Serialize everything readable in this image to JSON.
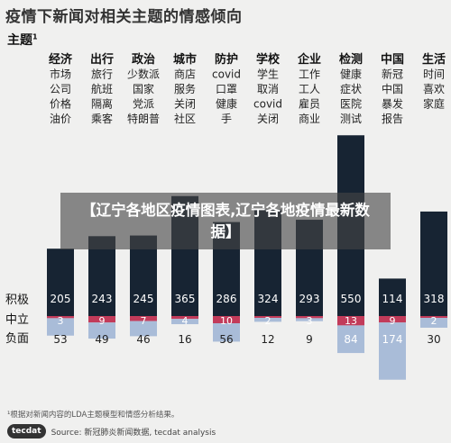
{
  "title": "疫情下新闻对相关主题的情感倾向",
  "subhead": "主题",
  "subhead_sup": "1",
  "overlay_text": "【辽宁各地区疫情图表,辽宁各地疫情最新数据】",
  "footnote": "¹根据对新闻内容的LDA主题模型和情感分析结果。",
  "source": {
    "logo_text": "tecdat",
    "text": "Source: 新冠肺炎新闻数据,  tecdat analysis"
  },
  "colors": {
    "positive": "#172433",
    "neutral": "#c23b5a",
    "negative": "#a9bcd8",
    "background": "#f0f0ef"
  },
  "chart_data": {
    "type": "bar",
    "categories": [
      {
        "name": "经济",
        "terms": [
          "市场",
          "公司",
          "价格",
          "油价"
        ]
      },
      {
        "name": "出行",
        "terms": [
          "旅行",
          "航班",
          "隔离",
          "乘客"
        ]
      },
      {
        "name": "政治",
        "terms": [
          "少数派",
          "国家",
          "党派",
          "特朗普"
        ]
      },
      {
        "name": "城市",
        "terms": [
          "商店",
          "服务",
          "关闭",
          "社区"
        ]
      },
      {
        "name": "防护",
        "terms": [
          "covid",
          "口罩",
          "健康",
          "手"
        ]
      },
      {
        "name": "学校",
        "terms": [
          "学生",
          "取消",
          "covid",
          "关闭"
        ]
      },
      {
        "name": "企业",
        "terms": [
          "工作",
          "工人",
          "雇员",
          "商业"
        ]
      },
      {
        "name": "检测",
        "terms": [
          "健康",
          "症状",
          "医院",
          "测试"
        ]
      },
      {
        "name": "中国",
        "terms": [
          "新冠",
          "中国",
          "暴发",
          "报告"
        ]
      },
      {
        "name": "生活",
        "terms": [
          "时间",
          "喜欢",
          "家庭"
        ]
      }
    ],
    "row_labels": {
      "positive": "积极",
      "neutral": "中立",
      "negative": "负面"
    },
    "series": [
      {
        "name": "积极",
        "values": [
          205,
          243,
          245,
          365,
          286,
          324,
          293,
          550,
          114,
          318
        ]
      },
      {
        "name": "中立",
        "values": [
          3,
          9,
          7,
          4,
          10,
          2,
          3,
          13,
          9,
          2
        ]
      },
      {
        "name": "负面",
        "values": [
          53,
          49,
          46,
          16,
          56,
          12,
          9,
          84,
          174,
          30
        ]
      }
    ]
  }
}
